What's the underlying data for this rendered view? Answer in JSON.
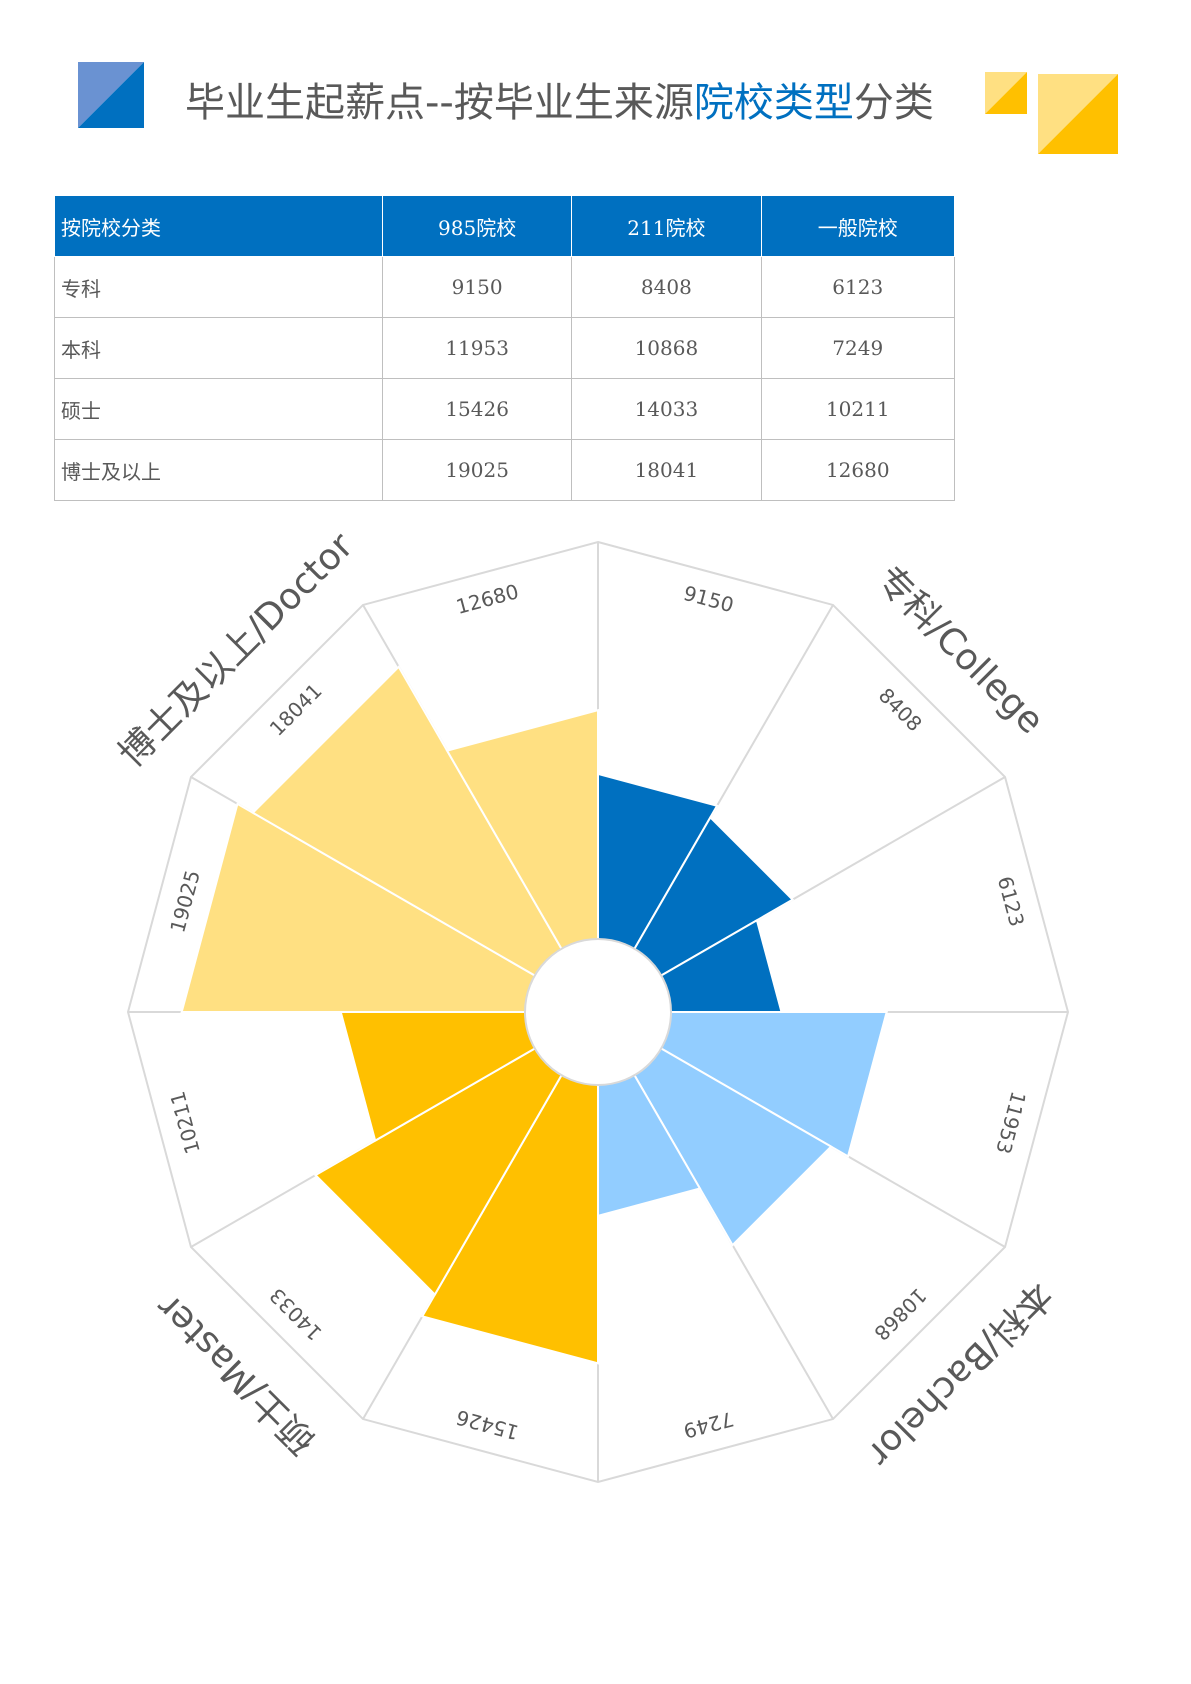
{
  "header": {
    "title_main": "毕业生起薪点--按毕业生来源",
    "title_highlight": "院校类型",
    "title_tail": "分类"
  },
  "colors": {
    "blue": "#0070c0",
    "light_blue": "#92cdff",
    "yellow": "#ffc000",
    "light_yellow": "#ffe082",
    "deco_blue": "#6a92d2",
    "grid": "#d9d9d9"
  },
  "table": {
    "headers": [
      "按院校分类",
      "985院校",
      "211院校",
      "一般院校"
    ],
    "rows": [
      [
        "专科",
        "9150",
        "8408",
        "6123"
      ],
      [
        "本科",
        "11953",
        "10868",
        "7249"
      ],
      [
        "硕士",
        "15426",
        "14033",
        "10211"
      ],
      [
        "博士及以上",
        "19025",
        "18041",
        "12680"
      ]
    ]
  },
  "chart_data": {
    "type": "rose",
    "axis_max": 22000,
    "school_types": [
      "985院校",
      "211院校",
      "一般院校"
    ],
    "groups": [
      {
        "name": "专科/College",
        "color": "#0070c0",
        "values": [
          9150,
          8408,
          6123
        ]
      },
      {
        "name": "本科/Bachelor",
        "color": "#92cdff",
        "values": [
          11953,
          10868,
          7249
        ]
      },
      {
        "name": "硕士/Master",
        "color": "#ffc000",
        "values": [
          15426,
          14033,
          10211
        ]
      },
      {
        "name": "博士及以上/Doctor",
        "color": "#ffe082",
        "values": [
          19025,
          18041,
          12680
        ]
      }
    ]
  }
}
